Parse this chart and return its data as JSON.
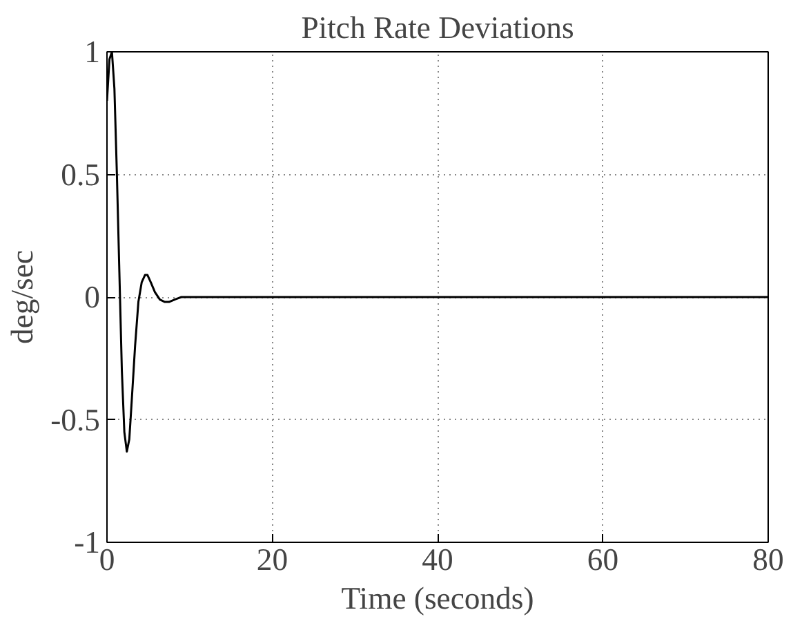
{
  "chart_data": {
    "type": "line",
    "title": "Pitch Rate Deviations",
    "xlabel": "Time (seconds)",
    "ylabel": "deg/sec",
    "x": [
      0,
      0.3,
      0.6,
      0.9,
      1.2,
      1.5,
      1.8,
      2.1,
      2.4,
      2.7,
      3.0,
      3.4,
      3.8,
      4.2,
      4.6,
      4.9,
      5.3,
      5.8,
      6.4,
      7.0,
      7.5,
      8.2,
      9.0,
      10,
      20,
      40,
      60,
      80
    ],
    "series": [
      {
        "color": "#000000",
        "values": [
          0.8,
          0.97,
          1.0,
          0.85,
          0.5,
          0.1,
          -0.3,
          -0.55,
          -0.63,
          -0.58,
          -0.42,
          -0.2,
          -0.02,
          0.06,
          0.09,
          0.09,
          0.06,
          0.02,
          -0.01,
          -0.02,
          -0.02,
          -0.01,
          0,
          0,
          0,
          0,
          0,
          0
        ]
      }
    ],
    "xlim": [
      0,
      80
    ],
    "ylim": [
      -1,
      1
    ],
    "xticks": [
      0,
      20,
      40,
      60,
      80
    ],
    "yticks": [
      -1,
      -0.5,
      0,
      0.5,
      1
    ],
    "grid": true,
    "line_style": "solid",
    "marker": "none"
  }
}
